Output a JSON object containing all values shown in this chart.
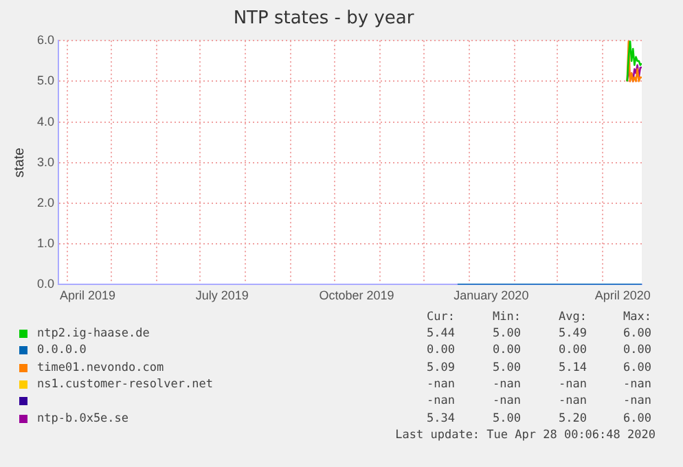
{
  "chart_data": {
    "type": "line",
    "title": "NTP states - by year",
    "ylabel": "state",
    "xlim": [
      "2019-03-26",
      "2020-04-28"
    ],
    "ylim": [
      0,
      6
    ],
    "yticks": [
      {
        "value": 0,
        "label": "0.0"
      },
      {
        "value": 1,
        "label": "1.0"
      },
      {
        "value": 2,
        "label": "2.0"
      },
      {
        "value": 3,
        "label": "3.0"
      },
      {
        "value": 4,
        "label": "4.0"
      },
      {
        "value": 5,
        "label": "5.0"
      },
      {
        "value": 6,
        "label": "6.0"
      }
    ],
    "xticks": [
      {
        "value": "2019-04-01",
        "label": null
      },
      {
        "value": "2019-04-15",
        "label": "April 2019"
      },
      {
        "value": "2019-05-01",
        "label": null
      },
      {
        "value": "2019-06-01",
        "label": null
      },
      {
        "value": "2019-07-01",
        "label": null
      },
      {
        "value": "2019-07-16",
        "label": "July 2019"
      },
      {
        "value": "2019-08-01",
        "label": null
      },
      {
        "value": "2019-09-01",
        "label": null
      },
      {
        "value": "2019-10-01",
        "label": null
      },
      {
        "value": "2019-10-16",
        "label": "October 2019"
      },
      {
        "value": "2019-11-01",
        "label": null
      },
      {
        "value": "2019-12-01",
        "label": null
      },
      {
        "value": "2020-01-01",
        "label": null
      },
      {
        "value": "2020-01-16",
        "label": "January 2020"
      },
      {
        "value": "2020-02-01",
        "label": null
      },
      {
        "value": "2020-03-01",
        "label": null
      },
      {
        "value": "2020-04-01",
        "label": null
      },
      {
        "value": "2020-04-15",
        "label": "April 2020"
      }
    ],
    "grid": true,
    "legend": "bottom",
    "marker": "none",
    "line_style": "solid",
    "series": [
      {
        "name": "ntp2.ig-haase.de",
        "color": "#00cc00",
        "x": [
          "2020-04-18",
          "2020-04-19",
          "2020-04-20",
          "2020-04-21",
          "2020-04-22",
          "2020-04-23",
          "2020-04-24",
          "2020-04-25",
          "2020-04-26",
          "2020-04-27",
          "2020-04-28"
        ],
        "values": [
          5.0,
          5.6,
          6.0,
          5.5,
          5.8,
          5.4,
          5.6,
          5.5,
          5.5,
          5.4,
          5.44
        ]
      },
      {
        "name": "0.0.0.0",
        "color": "#0066b3",
        "x": [
          "2019-12-24",
          "2020-04-28"
        ],
        "values": [
          0,
          0
        ]
      },
      {
        "name": "time01.nevondo.com",
        "color": "#ff8000",
        "x": [
          "2020-04-18",
          "2020-04-19",
          "2020-04-20",
          "2020-04-21",
          "2020-04-22",
          "2020-04-23",
          "2020-04-24",
          "2020-04-25",
          "2020-04-26",
          "2020-04-27",
          "2020-04-28"
        ],
        "values": [
          5.0,
          6.0,
          5.0,
          5.2,
          5.0,
          5.1,
          5.0,
          5.3,
          5.0,
          5.1,
          5.09
        ]
      },
      {
        "name": "ns1.customer-resolver.net",
        "color": "#ffcc00"
      },
      {
        "color": "#330099"
      },
      {
        "name": "ntp-b.0x5e.se",
        "color": "#990099",
        "x": [
          "2020-04-18",
          "2020-04-19",
          "2020-04-20",
          "2020-04-21",
          "2020-04-22",
          "2020-04-23",
          "2020-04-24",
          "2020-04-25",
          "2020-04-26",
          "2020-04-27",
          "2020-04-28"
        ],
        "values": [
          5.0,
          5.3,
          5.1,
          5.2,
          5.0,
          5.3,
          5.2,
          5.4,
          5.1,
          5.34,
          5.34
        ]
      }
    ],
    "annotations": [
      "Cur:",
      "Min:",
      "Avg:",
      "Max:",
      "5.44",
      "5.00",
      "5.49",
      "6.00",
      "0.00",
      "0.00",
      "0.00",
      "0.00",
      "5.09",
      "5.00",
      "5.14",
      "6.00",
      "-nan",
      "-nan",
      "-nan",
      "-nan",
      "-nan",
      "-nan",
      "-nan",
      "-nan",
      "5.34",
      "5.00",
      "5.20",
      "6.00",
      "Last update: Tue Apr 28 00:06:48 2020"
    ]
  }
}
